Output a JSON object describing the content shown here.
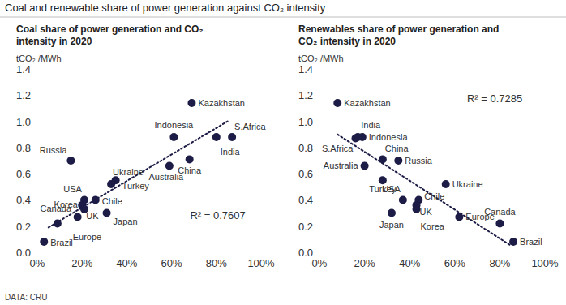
{
  "header": {
    "title": "Coal and renewable share of power generation against CO₂ intensity",
    "source": "DATA: CRU"
  },
  "chart_data": [
    {
      "type": "scatter",
      "title": "Coal share of power generation and CO₂ intensity in 2020",
      "y_label": "tCO₂ /MWh",
      "point_labels": [
        "Kazakhstan",
        "India",
        "Indonesia",
        "S.Africa",
        "China",
        "Russia",
        "Australia",
        "Turkey",
        "Ukraine",
        "USA",
        "Chile",
        "UK",
        "Korea",
        "Japan",
        "Europe",
        "Canada",
        "Brazil"
      ],
      "x": [
        69,
        80,
        61,
        87,
        68,
        15,
        59,
        35,
        33,
        21,
        26,
        20,
        21,
        31,
        18,
        9,
        3
      ],
      "values": [
        1.14,
        0.88,
        0.88,
        0.88,
        0.71,
        0.7,
        0.66,
        0.55,
        0.52,
        0.4,
        0.4,
        0.36,
        0.33,
        0.3,
        0.27,
        0.22,
        0.08
      ],
      "color": "#1c1c46",
      "marker": "circle",
      "grid": false,
      "trendline": {
        "x": [
          5,
          85
        ],
        "values": [
          0.19,
          1.0
        ],
        "line_style": "dotted",
        "color": "#1c1c46"
      },
      "annotations": [
        "R² = 0.7607"
      ],
      "xlim": [
        0,
        100
      ],
      "xticks": [
        {
          "value": 0,
          "label": "0%"
        },
        {
          "value": 20,
          "label": "20%"
        },
        {
          "value": 40,
          "label": "40%"
        },
        {
          "value": 60,
          "label": "60%"
        },
        {
          "value": 80,
          "label": "80%"
        },
        {
          "value": 100,
          "label": "100%"
        }
      ],
      "ylim": [
        0,
        1.4
      ],
      "yticks": [
        {
          "value": 0,
          "label": "0.0"
        },
        {
          "value": 0.2,
          "label": "0.2"
        },
        {
          "value": 0.4,
          "label": "0.4"
        },
        {
          "value": 0.6,
          "label": "0.6"
        },
        {
          "value": 0.8,
          "label": "0.8"
        },
        {
          "value": 1,
          "label": "1.0"
        },
        {
          "value": 1.2,
          "label": "1.2"
        },
        {
          "value": 1.4,
          "label": "1.4"
        }
      ]
    },
    {
      "type": "scatter",
      "title": "Renewables share of power generation and CO₂ intensity in 2020",
      "y_label": "tCO₂ /MWh",
      "point_labels": [
        "Kazakhstan",
        "India",
        "Indonesia",
        "S.Africa",
        "China",
        "Russia",
        "Australia",
        "Turkey",
        "Ukraine",
        "USA",
        "Chile",
        "UK",
        "Korea",
        "Japan",
        "Europe",
        "Canada",
        "Brazil"
      ],
      "x": [
        8,
        17,
        19,
        16,
        28,
        35,
        20,
        28,
        56,
        37,
        44,
        43,
        43,
        32,
        62,
        80,
        86
      ],
      "values": [
        1.14,
        0.88,
        0.88,
        0.87,
        0.71,
        0.7,
        0.66,
        0.55,
        0.52,
        0.4,
        0.4,
        0.36,
        0.33,
        0.3,
        0.27,
        0.22,
        0.08
      ],
      "color": "#1c1c46",
      "marker": "circle",
      "grid": false,
      "trendline": {
        "x": [
          8,
          85
        ],
        "values": [
          0.9,
          0.05
        ],
        "line_style": "dotted",
        "color": "#1c1c46"
      },
      "annotations": [
        "R² = 0.7285"
      ],
      "xlim": [
        0,
        100
      ],
      "xticks": [
        {
          "value": 0,
          "label": "0%"
        },
        {
          "value": 20,
          "label": "20%"
        },
        {
          "value": 40,
          "label": "40%"
        },
        {
          "value": 60,
          "label": "60%"
        },
        {
          "value": 80,
          "label": "80%"
        },
        {
          "value": 100,
          "label": "100%"
        }
      ],
      "ylim": [
        0,
        1.4
      ],
      "yticks": [
        {
          "value": 0,
          "label": "0.0"
        },
        {
          "value": 0.2,
          "label": "0.2"
        },
        {
          "value": 0.4,
          "label": "0.4"
        },
        {
          "value": 0.6,
          "label": "0.6"
        },
        {
          "value": 0.8,
          "label": "0.8"
        },
        {
          "value": 1,
          "label": "1.0"
        },
        {
          "value": 1.2,
          "label": "1.2"
        },
        {
          "value": 1.4,
          "label": "1.4"
        }
      ]
    }
  ]
}
